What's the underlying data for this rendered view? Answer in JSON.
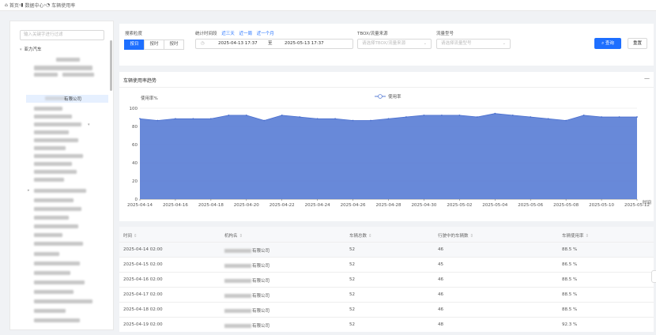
{
  "breadcrumb": {
    "items": [
      {
        "label": "首页",
        "icon": "home-icon"
      },
      {
        "label": "数据中心",
        "icon": "bar-chart-icon"
      },
      {
        "label": "车辆使用率",
        "icon": "pie-chart-icon"
      }
    ]
  },
  "sidebar": {
    "search_placeholder": "输入关键字进行过滤",
    "root_label": "亚力汽车",
    "selected_label": "有限公司"
  },
  "filters": {
    "granularity": {
      "label": "搜索粒度",
      "options": [
        "按日",
        "按时",
        "按时"
      ],
      "selected": 0
    },
    "time": {
      "label": "统计时间段",
      "quick_links": [
        "近三天",
        "近一周",
        "近一个月"
      ],
      "start": "2025-04-13 17:37",
      "separator": "至",
      "end": "2025-05-13 17:37"
    },
    "source": {
      "label": "TBOX/流量来源",
      "placeholder": "请选择TBOX/流量来源"
    },
    "model": {
      "label": "流量型号",
      "placeholder": "请选择流量型号"
    },
    "search_label": "查询",
    "reset_label": "重置"
  },
  "chart_section": {
    "title": "车辆使用率趋势",
    "collapse_symbol": "—"
  },
  "chart_data": {
    "type": "area",
    "ylabel": "使用率%",
    "xlabel": "时间",
    "ylim": [
      0,
      100
    ],
    "y_ticks": [
      0,
      20,
      40,
      60,
      80,
      100
    ],
    "legend": {
      "entries": [
        "使用率"
      ],
      "position": "top-center"
    },
    "x": [
      "2025-04-14",
      "2025-04-15",
      "2025-04-16",
      "2025-04-17",
      "2025-04-18",
      "2025-04-19",
      "2025-04-20",
      "2025-04-21",
      "2025-04-22",
      "2025-04-23",
      "2025-04-24",
      "2025-04-25",
      "2025-04-26",
      "2025-04-27",
      "2025-04-28",
      "2025-04-29",
      "2025-04-30",
      "2025-05-01",
      "2025-05-02",
      "2025-05-03",
      "2025-05-04",
      "2025-05-05",
      "2025-05-06",
      "2025-05-07",
      "2025-05-08",
      "2025-05-09",
      "2025-05-10",
      "2025-05-11",
      "2025-05-12"
    ],
    "x_tick_labels": [
      "2025-04-14",
      "2025-04-16",
      "2025-04-18",
      "2025-04-20",
      "2025-04-22",
      "2025-04-24",
      "2025-04-26",
      "2025-04-28",
      "2025-04-30",
      "2025-05-02",
      "2025-05-04",
      "2025-05-06",
      "2025-05-08",
      "2025-05-10",
      "2025-05-12"
    ],
    "series": [
      {
        "name": "使用率",
        "values": [
          88.5,
          86.5,
          88.5,
          88.5,
          88.5,
          92.3,
          92.3,
          86.5,
          92.3,
          90.4,
          88.5,
          88.5,
          86.5,
          86.5,
          88.5,
          90.4,
          92.3,
          92.3,
          92.3,
          90.4,
          94.2,
          92.3,
          90.4,
          88.5,
          86.5,
          92.3,
          90.4,
          90.4,
          90.4
        ]
      }
    ],
    "grid": true,
    "color": "#5b7fd6"
  },
  "table": {
    "columns": [
      "时间",
      "机构名",
      "车辆总数",
      "行驶中的车辆数",
      "车辆使用率"
    ],
    "rows": [
      {
        "time": "2025-04-14 02:00",
        "org": "有限公司",
        "total": "52",
        "active": "46",
        "rate": "88.5 %"
      },
      {
        "time": "2025-04-15 02:00",
        "org": "有限公司",
        "total": "52",
        "active": "45",
        "rate": "86.5 %"
      },
      {
        "time": "2025-04-16 02:00",
        "org": "有限公司",
        "total": "52",
        "active": "46",
        "rate": "88.5 %"
      },
      {
        "time": "2025-04-17 02:00",
        "org": "有限公司",
        "total": "52",
        "active": "46",
        "rate": "88.5 %"
      },
      {
        "time": "2025-04-18 02:00",
        "org": "有限公司",
        "total": "52",
        "active": "46",
        "rate": "88.5 %"
      },
      {
        "time": "2025-04-19 02:00",
        "org": "有限公司",
        "total": "52",
        "active": "48",
        "rate": "92.3 %"
      }
    ]
  }
}
